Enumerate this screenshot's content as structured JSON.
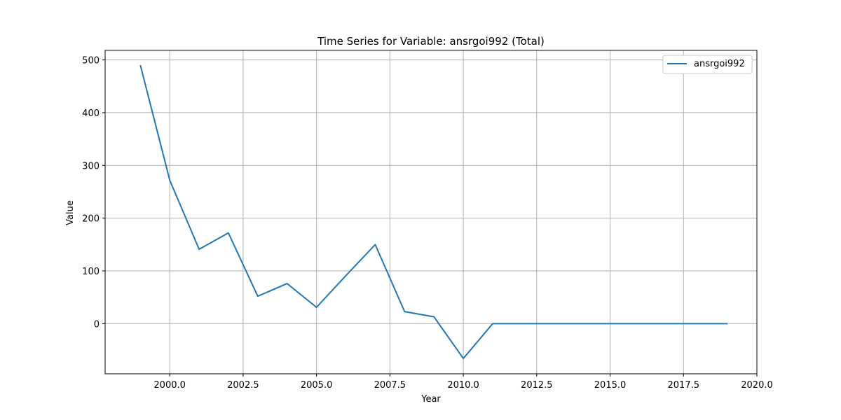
{
  "chart_data": {
    "type": "line",
    "title": "Time Series for Variable: ansrgoi992 (Total)",
    "xlabel": "Year",
    "ylabel": "Value",
    "xlim": [
      1997.8,
      2020.0
    ],
    "ylim": [
      -95,
      518
    ],
    "x_ticks": [
      2000.0,
      2002.5,
      2005.0,
      2007.5,
      2010.0,
      2012.5,
      2015.0,
      2017.5,
      2020.0
    ],
    "x_tick_labels": [
      "2000.0",
      "2002.5",
      "2005.0",
      "2007.5",
      "2010.0",
      "2012.5",
      "2015.0",
      "2017.5",
      "2020.0"
    ],
    "y_ticks": [
      0,
      100,
      200,
      300,
      400,
      500
    ],
    "y_tick_labels": [
      "0",
      "100",
      "200",
      "300",
      "400",
      "500"
    ],
    "grid": true,
    "legend_position": "top-right",
    "series": [
      {
        "name": "ansrgoi992",
        "color": "#1f77b4",
        "x": [
          1999,
          2000,
          2001,
          2002,
          2003,
          2004,
          2005,
          2006,
          2007,
          2008,
          2009,
          2010,
          2011,
          2012,
          2013,
          2014,
          2015,
          2016,
          2017,
          2018,
          2019
        ],
        "values": [
          490,
          272,
          141,
          172,
          52,
          76,
          31,
          91,
          150,
          23,
          13,
          -66,
          0,
          0,
          0,
          0,
          0,
          0,
          0,
          0,
          0
        ]
      }
    ]
  }
}
